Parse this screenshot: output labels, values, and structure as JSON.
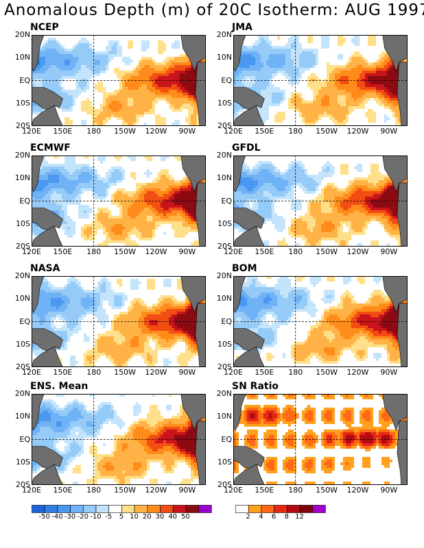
{
  "title": "Anomalous Depth (m) of 20C Isotherm: AUG 1997",
  "lat_ticks": [
    "20N",
    "10N",
    "EQ",
    "10S",
    "20S"
  ],
  "lon_ticks": [
    "120E",
    "150E",
    "180",
    "150W",
    "120W",
    "90W"
  ],
  "panels": [
    {
      "name": "NCEP",
      "kind": "anom"
    },
    {
      "name": "JMA",
      "kind": "anom"
    },
    {
      "name": "ECMWF",
      "kind": "anom"
    },
    {
      "name": "GFDL",
      "kind": "anom"
    },
    {
      "name": "NASA",
      "kind": "anom"
    },
    {
      "name": "BOM",
      "kind": "anom"
    },
    {
      "name": "ENS. Mean",
      "kind": "anom"
    },
    {
      "name": "SN Ratio",
      "kind": "sn"
    }
  ],
  "colorbar_anom": {
    "labels": [
      "-50",
      "-40",
      "-30",
      "-20",
      "-10",
      "-5",
      "5",
      "10",
      "20",
      "30",
      "40",
      "50"
    ],
    "colors": [
      "#1e64d8",
      "#2f7fe6",
      "#4a98f0",
      "#6fb2f5",
      "#96cbf8",
      "#c4e4fb",
      "#ffffff",
      "#ffe08a",
      "#ffb347",
      "#ff8c1a",
      "#f24d12",
      "#c8141a",
      "#8c0a12",
      "#9900cc"
    ]
  },
  "colorbar_sn": {
    "labels": [
      "2",
      "4",
      "6",
      "8",
      "12"
    ],
    "colors": [
      "#ffffff",
      "#ffa01e",
      "#ff6814",
      "#e52814",
      "#b40a14",
      "#82000a",
      "#a000c8"
    ]
  },
  "land_color": "#6e6e6e"
}
